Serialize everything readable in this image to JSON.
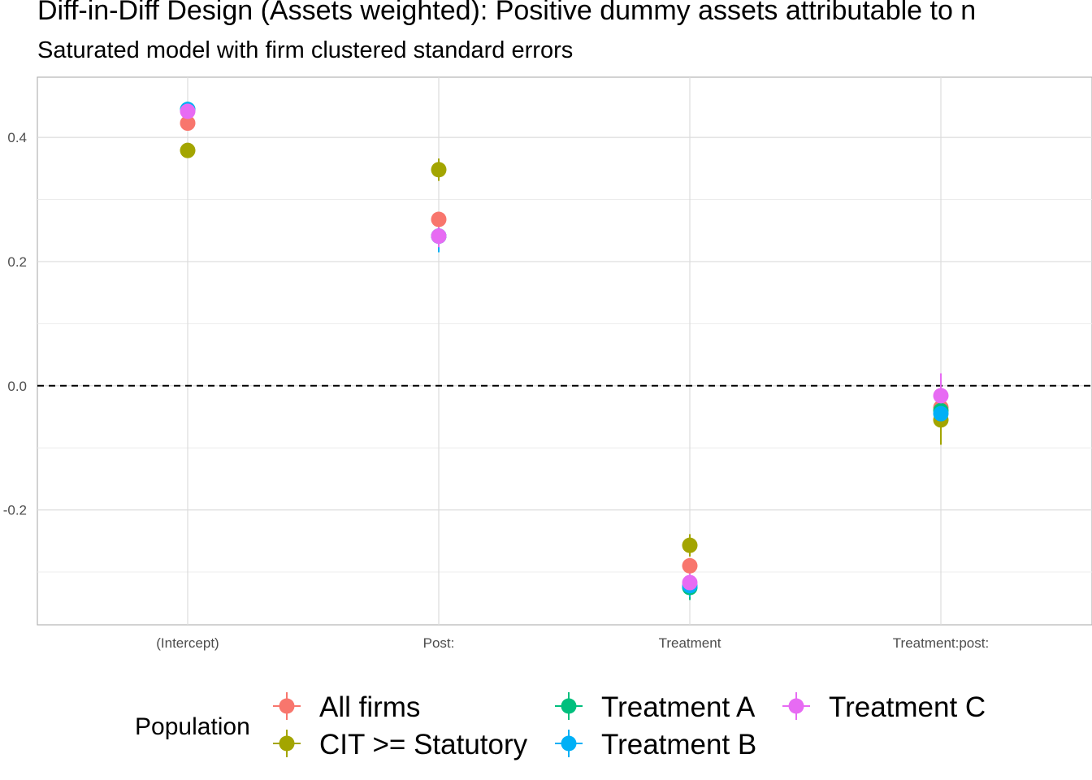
{
  "chart_data": {
    "type": "scatter",
    "title": "Diff-in-Diff Design (Assets weighted): Positive dummy assets attributable to n",
    "subtitle": "Saturated model with firm clustered standard errors",
    "xlabel": "",
    "ylabel": "",
    "categories": [
      "(Intercept)",
      "Post:",
      "Treatment",
      "Treatment:post:"
    ],
    "yticks": [
      -0.2,
      0.0,
      0.2,
      0.4
    ],
    "ytick_labels": [
      "-0.2",
      "0.0",
      "0.2",
      "0.4"
    ],
    "ylim": [
      -0.385,
      0.497
    ],
    "grid": true,
    "reference_line": 0.0,
    "legend_title": "Population",
    "legend_position": "bottom",
    "series": [
      {
        "name": "All firms",
        "color": "#F8766D",
        "values": [
          0.423,
          0.268,
          -0.29,
          -0.035
        ],
        "lower": [
          0.413,
          0.258,
          -0.3,
          -0.045
        ],
        "upper": [
          0.433,
          0.278,
          -0.28,
          -0.025
        ]
      },
      {
        "name": "CIT >= Statutory",
        "color": "#A3A500",
        "values": [
          0.379,
          0.348,
          -0.257,
          -0.055
        ],
        "lower": [
          0.369,
          0.33,
          -0.275,
          -0.095
        ],
        "upper": [
          0.389,
          0.366,
          -0.239,
          -0.015
        ]
      },
      {
        "name": "Treatment A",
        "color": "#00BF7D",
        "values": [
          0.445,
          0.241,
          -0.325,
          -0.04
        ],
        "lower": [
          0.435,
          0.215,
          -0.345,
          -0.06
        ],
        "upper": [
          0.455,
          0.267,
          -0.305,
          -0.02
        ]
      },
      {
        "name": "Treatment B",
        "color": "#00B0F6",
        "values": [
          0.445,
          0.241,
          -0.322,
          -0.045
        ],
        "lower": [
          0.435,
          0.215,
          -0.34,
          -0.065
        ],
        "upper": [
          0.455,
          0.267,
          -0.304,
          -0.025
        ]
      },
      {
        "name": "Treatment C",
        "color": "#E76BF3",
        "values": [
          0.442,
          0.241,
          -0.317,
          -0.016
        ],
        "lower": [
          0.432,
          0.223,
          -0.332,
          -0.05
        ],
        "upper": [
          0.452,
          0.259,
          -0.302,
          0.02
        ]
      }
    ]
  }
}
